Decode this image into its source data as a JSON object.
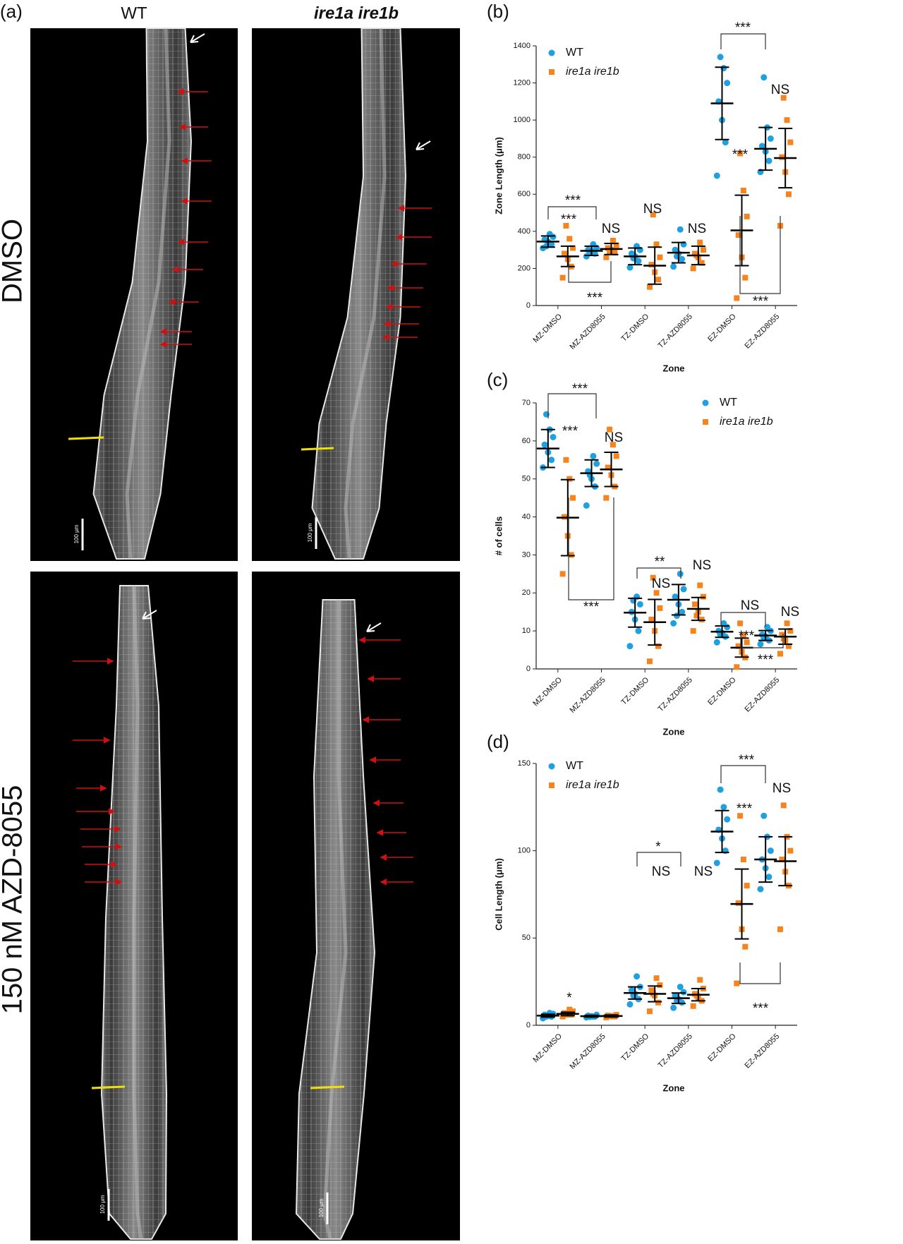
{
  "panel_a": {
    "label": "(a)",
    "columns": [
      "WT",
      "ire1a ire1b"
    ],
    "rows": [
      "DMSO",
      "150 nM AZD-8055"
    ],
    "scale_bar": "100 μm"
  },
  "chart_data": [
    {
      "type": "dot",
      "panel": "(b)",
      "xlabel": "Zone",
      "ylabel": "Zone Length (μm)",
      "legend": "upper left",
      "categories": [
        "MZ-DMSO",
        "MZ-AZD8055",
        "TZ-DMSO",
        "TZ-AZD8055",
        "EZ-DMSO",
        "EZ-AZD8055"
      ],
      "ylim": [
        0,
        1400
      ],
      "yticks": [
        0,
        200,
        400,
        600,
        800,
        1000,
        1200,
        1400
      ],
      "series": [
        {
          "name": "WT",
          "color": "#1fa0e0",
          "marker": "circle",
          "values": [
            345,
            295,
            265,
            285,
            1090,
            845
          ],
          "errors": [
            30,
            25,
            45,
            55,
            195,
            115
          ],
          "points": [
            [
              310,
              330,
              345,
              355,
              370,
              385,
              320
            ],
            [
              265,
              280,
              295,
              300,
              310,
              330,
              285
            ],
            [
              205,
              240,
              265,
              280,
              300,
              320,
              255
            ],
            [
              210,
              250,
              280,
              300,
              330,
              410,
              265
            ],
            [
              700,
              880,
              1000,
              1100,
              1200,
              1280,
              1340
            ],
            [
              720,
              780,
              830,
              860,
              900,
              960,
              1230
            ]
          ]
        },
        {
          "name": "ire1a ire1b",
          "color": "#f5841f",
          "marker": "square",
          "values": [
            265,
            305,
            215,
            270,
            405,
            795
          ],
          "errors": [
            55,
            30,
            100,
            50,
            190,
            160
          ],
          "points": [
            [
              150,
              210,
              250,
              280,
              310,
              360,
              430
            ],
            [
              260,
              285,
              300,
              310,
              325,
              350,
              290
            ],
            [
              100,
              140,
              180,
              220,
              260,
              330,
              490
            ],
            [
              200,
              230,
              260,
              280,
              300,
              340,
              270
            ],
            [
              40,
              150,
              260,
              380,
              480,
              620,
              820
            ],
            [
              430,
              600,
              720,
              800,
              880,
              1000,
              1120
            ]
          ]
        }
      ],
      "annotations": [
        "***",
        "***",
        "NS",
        "***",
        "NS",
        "NS",
        "***",
        "***",
        "NS",
        "***"
      ]
    },
    {
      "type": "dot",
      "panel": "(c)",
      "xlabel": "Zone",
      "ylabel": "# of cells",
      "legend": "upper right",
      "categories": [
        "MZ-DMSO",
        "MZ-AZD8055",
        "TZ-DMSO",
        "TZ-AZD8055",
        "EZ-DMSO",
        "EZ-AZD8055"
      ],
      "ylim": [
        0,
        70
      ],
      "yticks": [
        0,
        10,
        20,
        30,
        40,
        50,
        60,
        70
      ],
      "series": [
        {
          "name": "WT",
          "color": "#1fa0e0",
          "marker": "circle",
          "values": [
            58,
            51.5,
            14.8,
            18.2,
            9.8,
            8.8
          ],
          "errors": [
            5,
            3.5,
            3.8,
            4,
            1.5,
            1.3
          ],
          "points": [
            [
              53,
              55,
              57,
              59,
              61,
              63,
              67
            ],
            [
              43,
              48,
              50,
              52,
              54,
              56,
              51
            ],
            [
              6,
              10,
              13,
              15,
              17,
              19,
              18
            ],
            [
              12,
              15,
              17,
              19,
              21,
              25,
              14
            ],
            [
              7,
              8.5,
              9.5,
              10,
              11,
              12,
              9
            ],
            [
              6.5,
              7.5,
              8.5,
              9,
              10,
              11,
              8
            ]
          ]
        },
        {
          "name": "ire1a ire1b",
          "color": "#f5841f",
          "marker": "square",
          "values": [
            39.8,
            52.5,
            12.3,
            15.8,
            5.6,
            8.5
          ],
          "errors": [
            10,
            4.5,
            6,
            3,
            2.5,
            2
          ],
          "points": [
            [
              25,
              30,
              35,
              40,
              45,
              50,
              55
            ],
            [
              45,
              48,
              51,
              53,
              56,
              59,
              63
            ],
            [
              2,
              6,
              10,
              13,
              16,
              20,
              24
            ],
            [
              10,
              13,
              15,
              17,
              19,
              22,
              14
            ],
            [
              0.5,
              3,
              4.5,
              6,
              7,
              9,
              12
            ],
            [
              4,
              6,
              7.5,
              9,
              10,
              12,
              8
            ]
          ]
        }
      ],
      "annotations": [
        "***",
        "***",
        "NS",
        "***",
        "**",
        "NS",
        "NS",
        "NS",
        "***",
        "NS",
        "***"
      ]
    },
    {
      "type": "dot",
      "panel": "(d)",
      "xlabel": "Zone",
      "ylabel": "Cell Length (μm)",
      "legend": "upper left",
      "categories": [
        "MZ-DMSO",
        "MZ-AZD8055",
        "TZ-DMSO",
        "TZ-AZD8055",
        "EZ-DMSO",
        "EZ-AZD8055"
      ],
      "ylim": [
        0,
        150
      ],
      "yticks": [
        0,
        50,
        100,
        150
      ],
      "series": [
        {
          "name": "WT",
          "color": "#1fa0e0",
          "marker": "circle",
          "values": [
            5.5,
            5.2,
            18.5,
            15.5,
            111,
            95
          ],
          "errors": [
            0.8,
            0.5,
            3.5,
            3,
            12,
            13
          ],
          "points": [
            [
              4,
              5,
              5.5,
              6,
              6.5,
              7,
              5
            ],
            [
              4.5,
              5,
              5.2,
              5.5,
              6,
              5,
              4.8
            ],
            [
              12,
              15,
              18,
              20,
              22,
              28,
              17
            ],
            [
              10,
              13,
              15,
              17,
              19,
              22,
              14
            ],
            [
              93,
              100,
              107,
              112,
              118,
              125,
              135
            ],
            [
              78,
              85,
              90,
              95,
              100,
              108,
              120
            ]
          ]
        },
        {
          "name": "ire1a ire1b",
          "color": "#f5841f",
          "marker": "square",
          "values": [
            6.5,
            5.3,
            18,
            17.5,
            69.5,
            94
          ],
          "errors": [
            1,
            0.6,
            4.5,
            3.5,
            20,
            14
          ],
          "points": [
            [
              5,
              6,
              6.5,
              7,
              8,
              9,
              6
            ],
            [
              4.5,
              5,
              5.3,
              5.6,
              6,
              5,
              5.2
            ],
            [
              8,
              13,
              17,
              20,
              23,
              27,
              18
            ],
            [
              11,
              14,
              16,
              18,
              21,
              26,
              17
            ],
            [
              24,
              45,
              55,
              70,
              80,
              95,
              120
            ],
            [
              55,
              80,
              88,
              95,
              100,
              108,
              126
            ]
          ]
        }
      ],
      "annotations": [
        "*",
        "*",
        "NS",
        "NS",
        "***",
        "***",
        "NS",
        "***"
      ]
    }
  ]
}
